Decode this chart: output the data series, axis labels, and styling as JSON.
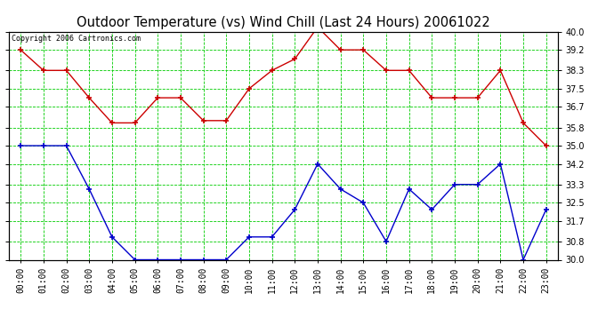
{
  "title": "Outdoor Temperature (vs) Wind Chill (Last 24 Hours) 20061022",
  "copyright": "Copyright 2006 Cartronics.com",
  "x_labels": [
    "00:00",
    "01:00",
    "02:00",
    "03:00",
    "04:00",
    "05:00",
    "06:00",
    "07:00",
    "08:00",
    "09:00",
    "10:00",
    "11:00",
    "12:00",
    "13:00",
    "14:00",
    "15:00",
    "16:00",
    "17:00",
    "18:00",
    "19:00",
    "20:00",
    "21:00",
    "22:00",
    "23:00"
  ],
  "temp_red": [
    39.2,
    38.3,
    38.3,
    37.1,
    36.0,
    36.0,
    37.1,
    37.1,
    36.1,
    36.1,
    37.5,
    38.3,
    38.8,
    40.2,
    39.2,
    39.2,
    38.3,
    38.3,
    37.1,
    37.1,
    37.1,
    38.3,
    36.0,
    35.0
  ],
  "wind_blue": [
    35.0,
    35.0,
    35.0,
    33.1,
    31.0,
    30.0,
    30.0,
    30.0,
    30.0,
    30.0,
    31.0,
    31.0,
    32.2,
    34.2,
    33.1,
    32.5,
    30.8,
    33.1,
    32.2,
    33.3,
    33.3,
    34.2,
    30.0,
    32.2
  ],
  "ylim_min": 30.0,
  "ylim_max": 40.0,
  "yticks": [
    30.0,
    30.8,
    31.7,
    32.5,
    33.3,
    34.2,
    35.0,
    35.8,
    36.7,
    37.5,
    38.3,
    39.2,
    40.0
  ],
  "bg_color": "#ffffff",
  "grid_color": "#00cc00",
  "grid_minor_color": "#ccffcc",
  "red_color": "#cc0000",
  "blue_color": "#0000cc",
  "title_fontsize": 10.5,
  "tick_fontsize": 7,
  "copyright_fontsize": 6
}
